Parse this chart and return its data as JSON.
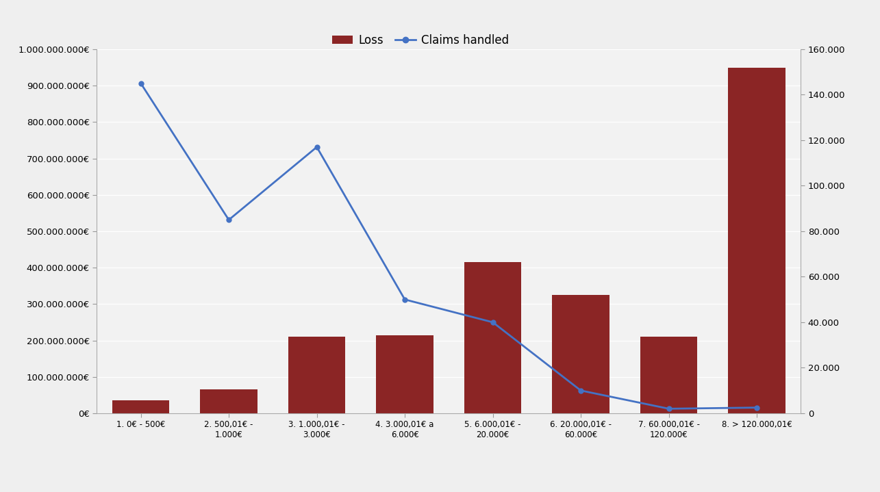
{
  "categories": [
    "1. 0€ - 500€",
    "2. 500,01€ -\n1.000€",
    "3. 1.000,01€ -\n3.000€",
    "4. 3.000,01€ a\n6.000€",
    "5. 6.000,01€ -\n20.000€",
    "6. 20.000,01€ -\n60.000€",
    "7. 60.000,01€ -\n120.000€",
    "8. > 120.000,01€"
  ],
  "loss_values": [
    35000000,
    65000000,
    210000000,
    215000000,
    415000000,
    325000000,
    210000000,
    950000000
  ],
  "claims_values": [
    145000,
    85000,
    117000,
    50000,
    40000,
    10000,
    2000,
    2500
  ],
  "bar_color": "#8B2525",
  "line_color": "#4472C4",
  "background_color": "#EFEFEF",
  "plot_bg_color": "#F2F2F2",
  "left_ylim": [
    0,
    1000000000
  ],
  "right_ylim": [
    0,
    160000
  ],
  "left_yticks": [
    0,
    100000000,
    200000000,
    300000000,
    400000000,
    500000000,
    600000000,
    700000000,
    800000000,
    900000000,
    1000000000
  ],
  "right_yticks": [
    0,
    20000,
    40000,
    60000,
    80000,
    100000,
    120000,
    140000,
    160000
  ],
  "legend_loss": "Loss",
  "legend_claims": "Claims handled",
  "tick_label_fontsize": 9.5,
  "xlabel_fontsize": 8.5
}
